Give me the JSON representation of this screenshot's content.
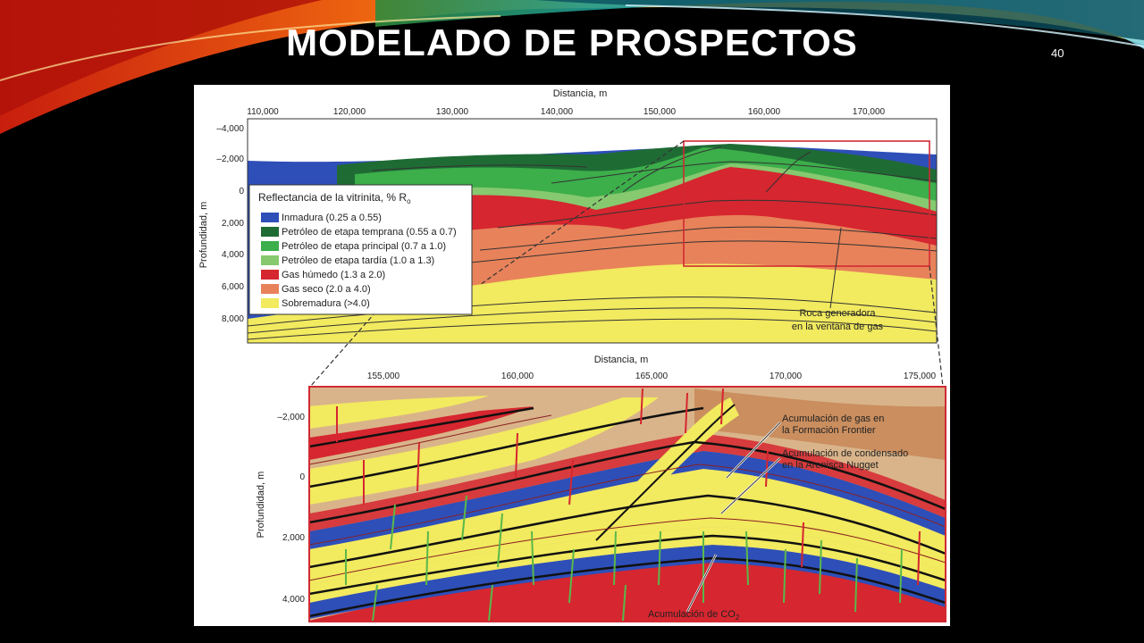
{
  "slide": {
    "title": "MODELADO DE PROSPECTOS",
    "number": "40",
    "colors": {
      "background": "#000000",
      "title": "#ffffff"
    }
  },
  "top_section": {
    "x_axis": {
      "label": "Distancia, m",
      "ticks": [
        "110,000",
        "120,000",
        "130,000",
        "140,000",
        "150,000",
        "160,000",
        "170,000"
      ]
    },
    "y_axis": {
      "label": "Profundidad, m",
      "ticks": [
        "–4,000",
        "–2,000",
        "0",
        "2,000",
        "4,000",
        "6,000",
        "8,000"
      ]
    },
    "legend": {
      "title": "Reflectancia de la vitrinita, % R",
      "title_subscript": "o",
      "items": [
        {
          "label": "Inmadura (0.25 a 0.55)",
          "color": "#2e4fb8"
        },
        {
          "label": "Petróleo de etapa temprana (0.55 a 0.7)",
          "color": "#1f6b34"
        },
        {
          "label": "Petróleo de etapa principal (0.7 a 1.0)",
          "color": "#3cae4a"
        },
        {
          "label": "Petróleo de etapa tardía (1.0 a 1.3)",
          "color": "#86c96f"
        },
        {
          "label": "Gas húmedo (1.3 a 2.0)",
          "color": "#d6262f"
        },
        {
          "label": "Gas seco (2.0 a 4.0)",
          "color": "#e8825a"
        },
        {
          "label": "Sobremadura (>4.0)",
          "color": "#f2ea5f"
        }
      ]
    },
    "annotation": {
      "line1": "Roca generadora",
      "line2": "en la ventana de gas"
    }
  },
  "bottom_section": {
    "x_axis": {
      "label": "Distancia, m",
      "ticks": [
        "155,000",
        "160,000",
        "165,000",
        "170,000",
        "175,000"
      ]
    },
    "y_axis": {
      "label": "Profundidad, m",
      "ticks": [
        "–2,000",
        "0",
        "2,000",
        "4,000"
      ]
    },
    "annotations": {
      "gas_frontier": {
        "line1": "Acumulación de gas en",
        "line2": "la Formación Frontier"
      },
      "condensate_nugget": {
        "line1": "Acumulación de condensado",
        "line2": "en la Arenisca Nugget"
      },
      "co2": {
        "text": "Acumulación de CO",
        "subscript": "2"
      }
    }
  }
}
